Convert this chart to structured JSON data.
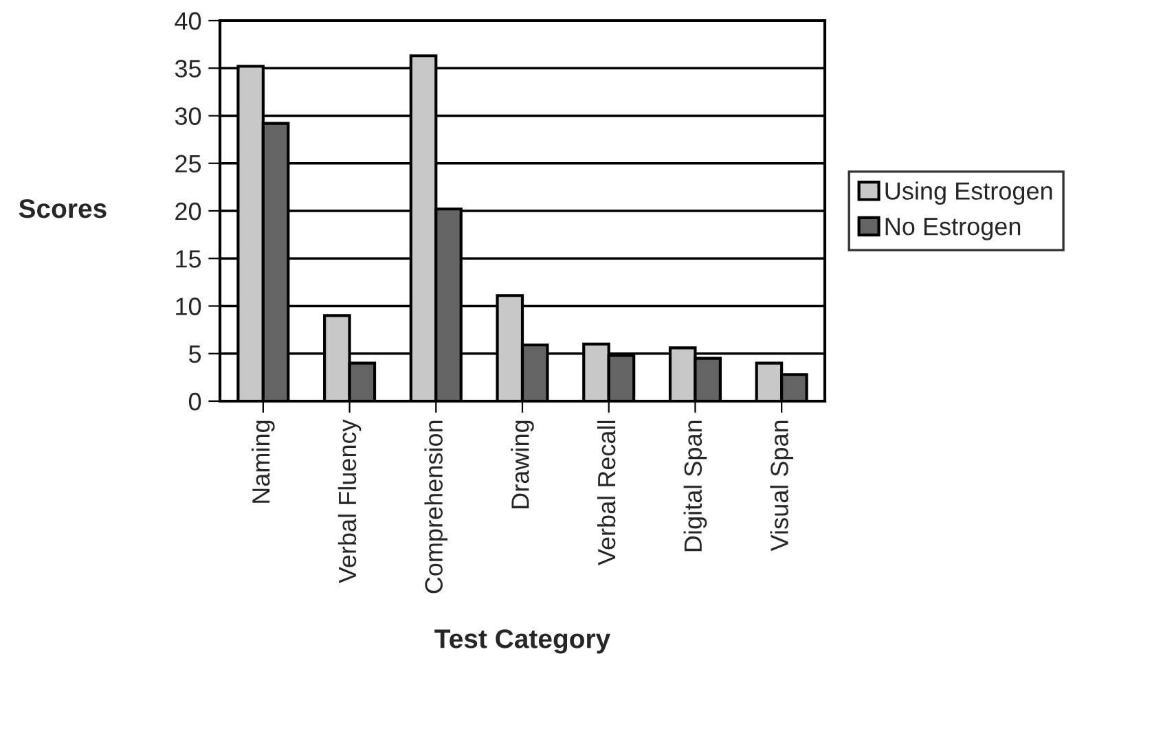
{
  "chart_data": {
    "type": "bar",
    "xlabel": "Test Category",
    "ylabel": "Scores",
    "categories": [
      "Naming",
      "Verbal Fluency",
      "Comprehension",
      "Drawing",
      "Verbal Recall",
      "Digital Span",
      "Visual Span"
    ],
    "series": [
      {
        "name": "Using Estrogen",
        "color": "#c8c8c8",
        "values": [
          35.2,
          9.0,
          36.3,
          11.1,
          6.0,
          5.6,
          4.0
        ]
      },
      {
        "name": "No Estrogen",
        "color": "#646464",
        "values": [
          29.2,
          4.0,
          20.2,
          5.9,
          4.8,
          4.5,
          2.8
        ]
      }
    ],
    "ylim": [
      0,
      40
    ],
    "yticks": [
      0,
      5,
      10,
      15,
      20,
      25,
      30,
      35,
      40
    ],
    "grid": "y",
    "legend": "right"
  }
}
